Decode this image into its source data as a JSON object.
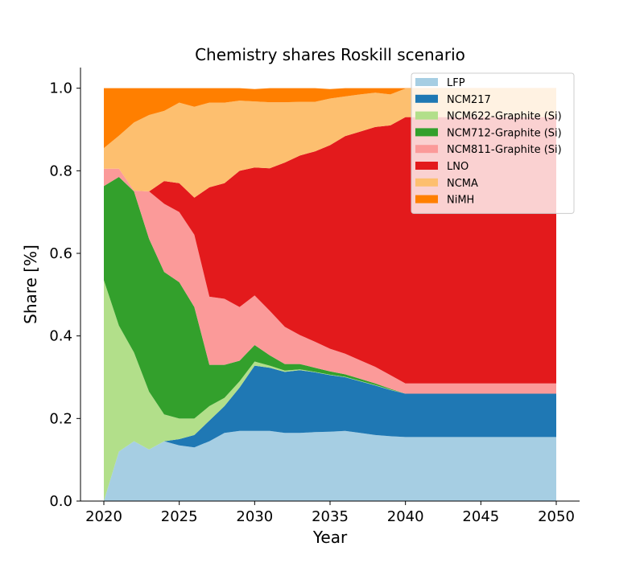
{
  "chart_data": {
    "type": "area",
    "title": "Chemistry shares Roskill scenario",
    "xlabel": "Year",
    "ylabel": "Share [%]",
    "xlim": [
      2020,
      2050
    ],
    "ylim": [
      0,
      1.05
    ],
    "x_ticks": [
      2020,
      2025,
      2030,
      2035,
      2040,
      2045,
      2050
    ],
    "y_ticks": [
      0.0,
      0.2,
      0.4,
      0.6,
      0.8,
      1.0
    ],
    "legend_position": "top-right",
    "stacked": true,
    "x": [
      2020,
      2021,
      2022,
      2023,
      2024,
      2025,
      2026,
      2027,
      2028,
      2029,
      2030,
      2031,
      2032,
      2033,
      2034,
      2035,
      2036,
      2037,
      2038,
      2039,
      2040,
      2041,
      2042,
      2043,
      2044,
      2045,
      2046,
      2047,
      2048,
      2049,
      2050
    ],
    "series": [
      {
        "name": "LFP",
        "color": "#a6cee3",
        "values": [
          0.0,
          0.12,
          0.145,
          0.125,
          0.145,
          0.135,
          0.13,
          0.145,
          0.165,
          0.17,
          0.17,
          0.17,
          0.165,
          0.165,
          0.167,
          0.168,
          0.17,
          0.165,
          0.16,
          0.157,
          0.155,
          0.155,
          0.155,
          0.155,
          0.155,
          0.155,
          0.155,
          0.155,
          0.155,
          0.155,
          0.155
        ]
      },
      {
        "name": "NCM217",
        "color": "#1f78b4",
        "values": [
          0.0,
          0.0,
          0.0,
          0.0,
          0.0,
          0.015,
          0.03,
          0.05,
          0.065,
          0.105,
          0.158,
          0.153,
          0.148,
          0.152,
          0.145,
          0.137,
          0.13,
          0.125,
          0.12,
          0.112,
          0.105,
          0.105,
          0.105,
          0.105,
          0.105,
          0.105,
          0.105,
          0.105,
          0.105,
          0.105,
          0.105
        ]
      },
      {
        "name": "NCM622-Graphite (Si)",
        "color": "#b2df8a",
        "values": [
          0.535,
          0.305,
          0.215,
          0.14,
          0.065,
          0.05,
          0.04,
          0.035,
          0.02,
          0.015,
          0.01,
          0.005,
          0.003,
          0.002,
          0.001,
          0.001,
          0.001,
          0.001,
          0.001,
          0.001,
          0.0,
          0.0,
          0.0,
          0.0,
          0.0,
          0.0,
          0.0,
          0.0,
          0.0,
          0.0,
          0.0
        ]
      },
      {
        "name": "NCM712-Graphite (Si)",
        "color": "#33a02c",
        "values": [
          0.228,
          0.36,
          0.39,
          0.37,
          0.345,
          0.33,
          0.27,
          0.1,
          0.08,
          0.05,
          0.04,
          0.025,
          0.016,
          0.013,
          0.01,
          0.008,
          0.006,
          0.005,
          0.004,
          0.002,
          0.0,
          0.0,
          0.0,
          0.0,
          0.0,
          0.0,
          0.0,
          0.0,
          0.0,
          0.0,
          0.0
        ]
      },
      {
        "name": "NCM811-Graphite (Si)",
        "color": "#fb9a99",
        "values": [
          0.042,
          0.02,
          0.002,
          0.115,
          0.165,
          0.17,
          0.175,
          0.165,
          0.16,
          0.13,
          0.12,
          0.108,
          0.09,
          0.07,
          0.063,
          0.055,
          0.05,
          0.045,
          0.04,
          0.033,
          0.025,
          0.025,
          0.025,
          0.025,
          0.025,
          0.025,
          0.025,
          0.025,
          0.025,
          0.025,
          0.025
        ]
      },
      {
        "name": "LNO",
        "color": "#e31a1c",
        "values": [
          0.0,
          0.0,
          0.0,
          0.0,
          0.055,
          0.07,
          0.09,
          0.265,
          0.28,
          0.33,
          0.31,
          0.345,
          0.398,
          0.435,
          0.461,
          0.493,
          0.527,
          0.554,
          0.581,
          0.605,
          0.645,
          0.645,
          0.645,
          0.645,
          0.645,
          0.645,
          0.645,
          0.645,
          0.645,
          0.645,
          0.645
        ]
      },
      {
        "name": "NCMA",
        "color": "#fdbf6f",
        "values": [
          0.05,
          0.08,
          0.165,
          0.185,
          0.17,
          0.195,
          0.22,
          0.205,
          0.195,
          0.17,
          0.16,
          0.16,
          0.146,
          0.13,
          0.12,
          0.113,
          0.096,
          0.09,
          0.083,
          0.075,
          0.069,
          0.069,
          0.069,
          0.069,
          0.069,
          0.069,
          0.069,
          0.069,
          0.069,
          0.069,
          0.069
        ]
      },
      {
        "name": "NiMH",
        "color": "#ff7f00",
        "values": [
          0.145,
          0.115,
          0.083,
          0.065,
          0.055,
          0.035,
          0.045,
          0.035,
          0.035,
          0.03,
          0.03,
          0.034,
          0.034,
          0.033,
          0.033,
          0.023,
          0.02,
          0.015,
          0.011,
          0.015,
          0.001,
          0.001,
          0.001,
          0.001,
          0.001,
          0.001,
          0.001,
          0.001,
          0.001,
          0.001,
          0.001
        ]
      }
    ]
  }
}
